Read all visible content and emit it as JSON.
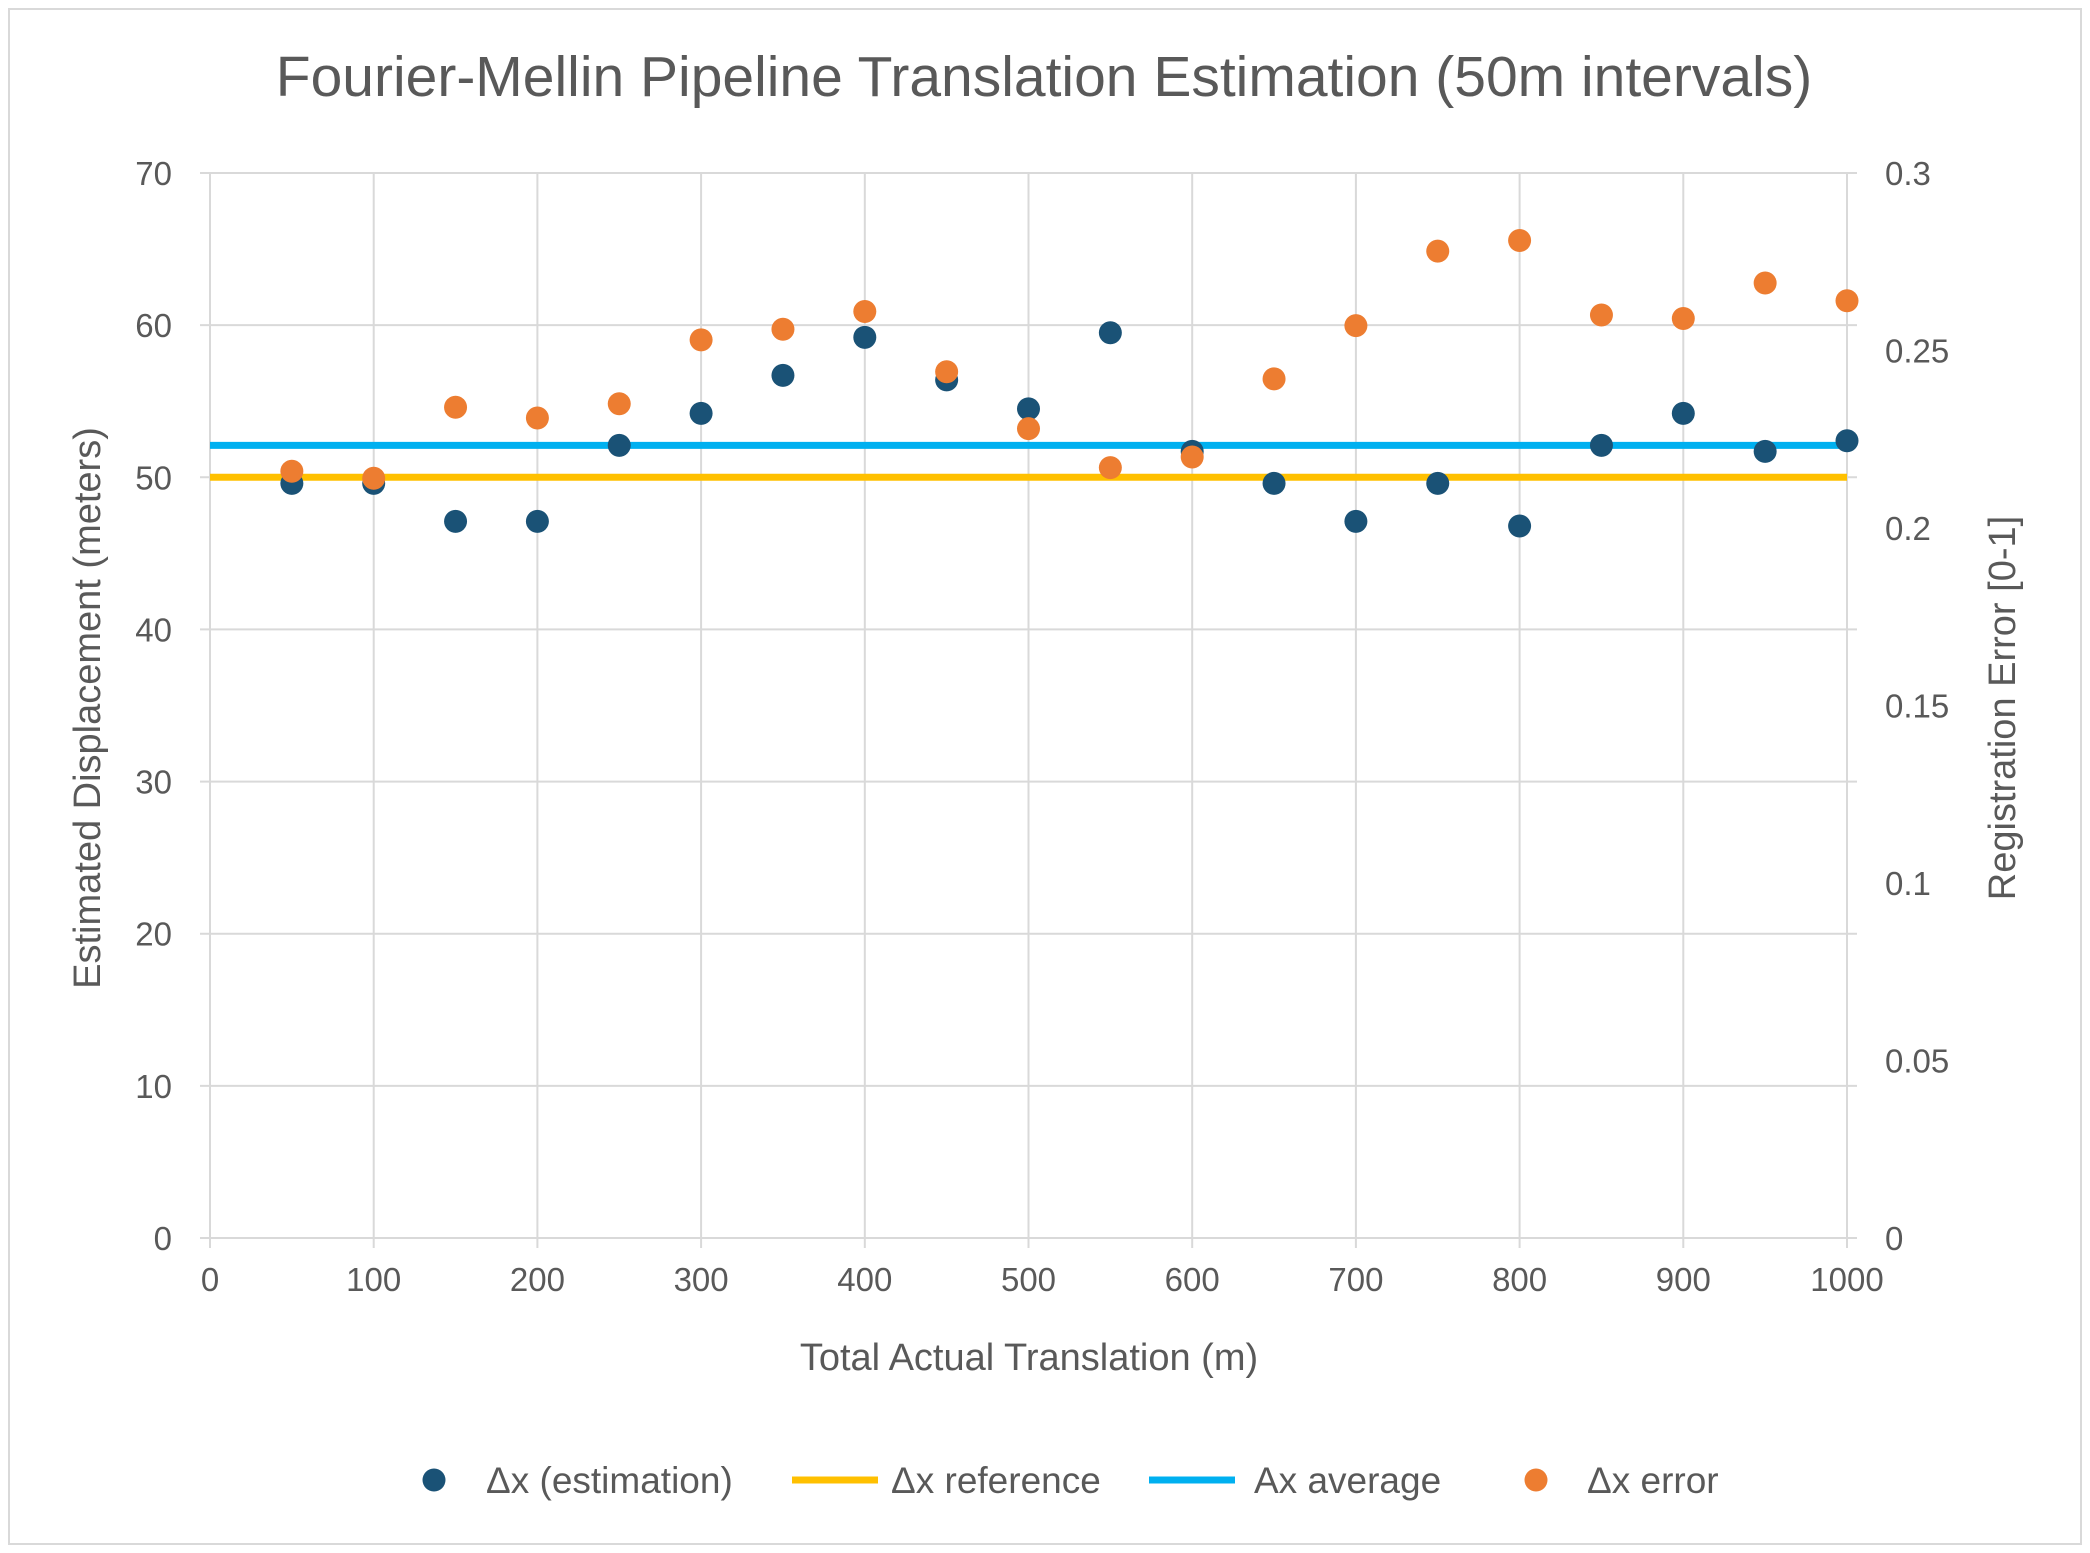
{
  "chart_data": {
    "type": "scatter",
    "title": "Fourier-Mellin Pipeline Translation Estimation (50m intervals)",
    "xlabel": "Total Actual Translation (m)",
    "ylabel": "Estimated Displacement (meters)",
    "y2label": "Registration Error [0-1]",
    "xlim": [
      0,
      1000
    ],
    "ylim": [
      0,
      70
    ],
    "y2lim": [
      0,
      0.3
    ],
    "grid": true,
    "legend_position": "bottom",
    "x_ticks": [
      "0",
      "100",
      "200",
      "300",
      "400",
      "500",
      "600",
      "700",
      "800",
      "900",
      "1000"
    ],
    "y_ticks": [
      "0",
      "10",
      "20",
      "30",
      "40",
      "50",
      "60",
      "70"
    ],
    "y2_ticks": [
      "0",
      "0.05",
      "0.1",
      "0.15",
      "0.2",
      "0.25",
      "0.3"
    ],
    "series": [
      {
        "name": "Δx (estimation)",
        "kind": "scatter",
        "axis": "left",
        "color": "#1a5276",
        "x": [
          50,
          100,
          150,
          200,
          250,
          300,
          350,
          400,
          450,
          500,
          550,
          600,
          650,
          700,
          750,
          800,
          850,
          900,
          950,
          1000
        ],
        "y": [
          49.6,
          49.6,
          47.1,
          47.1,
          52.1,
          54.2,
          56.7,
          59.2,
          56.4,
          54.5,
          59.5,
          51.7,
          49.6,
          47.1,
          49.6,
          46.8,
          52.1,
          54.2,
          51.7,
          52.4
        ]
      },
      {
        "name": "Δx reference",
        "kind": "line",
        "axis": "left",
        "color": "#ffc000",
        "x": [
          0,
          1000
        ],
        "y": [
          50,
          50
        ]
      },
      {
        "name": "Ax average",
        "kind": "line",
        "axis": "left",
        "color": "#00b0f0",
        "x": [
          0,
          1000
        ],
        "y": [
          52.1,
          52.1
        ]
      },
      {
        "name": "Δx error",
        "kind": "scatter",
        "axis": "right",
        "color": "#ed7d31",
        "x": [
          50,
          100,
          150,
          200,
          250,
          300,
          350,
          400,
          450,
          500,
          550,
          600,
          650,
          700,
          750,
          800,
          850,
          900,
          950,
          1000
        ],
        "y": [
          0.216,
          0.214,
          0.234,
          0.231,
          0.235,
          0.253,
          0.256,
          0.261,
          0.244,
          0.228,
          0.217,
          0.22,
          0.242,
          0.257,
          0.278,
          0.281,
          0.26,
          0.259,
          0.269,
          0.264
        ]
      }
    ]
  }
}
